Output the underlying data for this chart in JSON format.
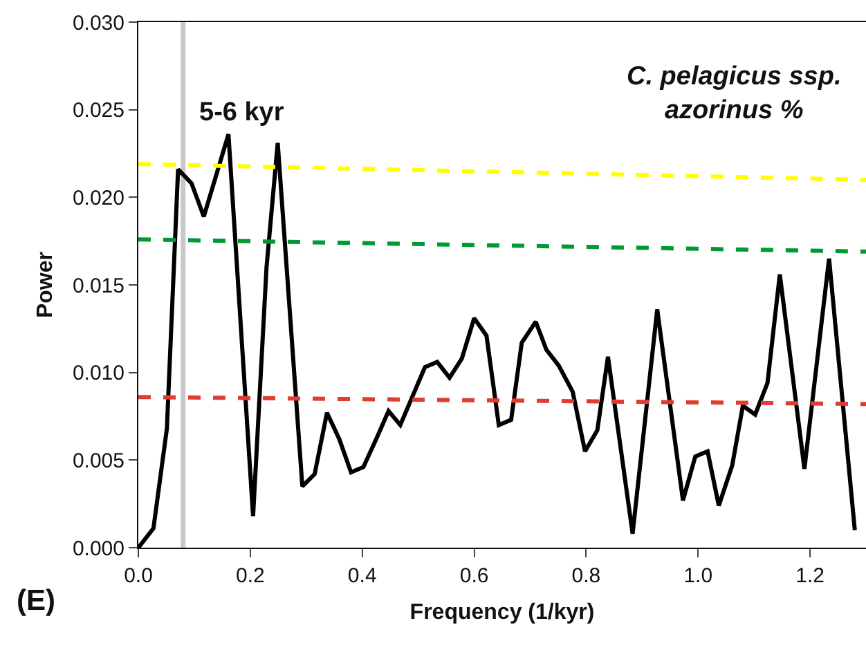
{
  "chart_data": {
    "type": "line",
    "title": "C. pelagicus ssp. azorinus %",
    "xlabel": "Frequency (1/kyr)",
    "ylabel": "Power",
    "annotations": [
      "(E)"
    ],
    "series": [
      {
        "color": "#000000",
        "x": [
          0,
          0.027,
          0.051,
          0.071,
          0.095,
          0.117,
          0.161,
          0.205,
          0.229,
          0.249,
          0.293,
          0.315,
          0.337,
          0.359,
          0.38,
          0.402,
          0.425,
          0.447,
          0.468,
          0.512,
          0.534,
          0.556,
          0.578,
          0.6,
          0.622,
          0.644,
          0.666,
          0.685,
          0.71,
          0.729,
          0.751,
          0.776,
          0.798,
          0.82,
          0.839,
          0.883,
          0.927,
          0.973,
          0.995,
          1.017,
          1.037,
          1.061,
          1.08,
          1.102,
          1.124,
          1.146,
          1.19,
          1.234,
          1.28
        ],
        "values": [
          0,
          0.0011,
          0.0068,
          0.0216,
          0.0208,
          0.0189,
          0.0236,
          0.0018,
          0.016,
          0.0231,
          0.0035,
          0.0042,
          0.0077,
          0.0062,
          0.0043,
          0.0046,
          0.0062,
          0.0078,
          0.007,
          0.0103,
          0.0106,
          0.0097,
          0.0108,
          0.0131,
          0.0121,
          0.007,
          0.0073,
          0.0117,
          0.0129,
          0.0113,
          0.0104,
          0.0089,
          0.0055,
          0.0067,
          0.0109,
          0.0008,
          0.0136,
          0.0027,
          0.0052,
          0.0055,
          0.0024,
          0.0047,
          0.0081,
          0.0076,
          0.0094,
          0.0156,
          0.0045,
          0.0165,
          0.001
        ],
        "line_style": "solid"
      },
      {
        "color": "#ffff00",
        "x": [
          0,
          1.3
        ],
        "values": [
          0.0219,
          0.021
        ],
        "line_style": "dashed"
      },
      {
        "color": "#009933",
        "x": [
          0,
          1.3
        ],
        "values": [
          0.0176,
          0.0169
        ],
        "line_style": "dashed"
      },
      {
        "color": "#e03c31",
        "x": [
          0,
          1.3
        ],
        "values": [
          0.0086,
          0.0082
        ],
        "line_style": "dashed"
      }
    ],
    "ref_lines": [
      {
        "axis": "x",
        "value": 0.08,
        "label": "5-6 kyr",
        "color": "#c8c8c8"
      }
    ],
    "xlim": [
      0,
      1.3
    ],
    "ylim": [
      0,
      0.03
    ],
    "xticks": [
      {
        "value": 0,
        "label": "0.0"
      },
      {
        "value": 0.2,
        "label": "0.2"
      },
      {
        "value": 0.4,
        "label": "0.4"
      },
      {
        "value": 0.6,
        "label": "0.6"
      },
      {
        "value": 0.8,
        "label": "0.8"
      },
      {
        "value": 1.0,
        "label": "1.0"
      },
      {
        "value": 1.2,
        "label": "1.2"
      }
    ],
    "yticks": [
      {
        "value": 0,
        "label": "0.000"
      },
      {
        "value": 0.005,
        "label": "0.005"
      },
      {
        "value": 0.01,
        "label": "0.010"
      },
      {
        "value": 0.015,
        "label": "0.015"
      },
      {
        "value": 0.02,
        "label": "0.020"
      },
      {
        "value": 0.025,
        "label": "0.025"
      },
      {
        "value": 0.03,
        "label": "0.030"
      }
    ],
    "grid": false,
    "marker": "none"
  }
}
